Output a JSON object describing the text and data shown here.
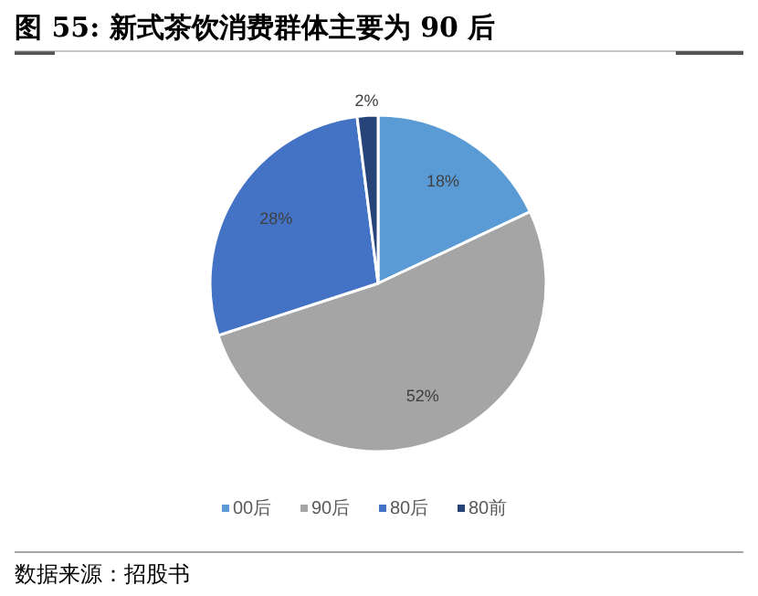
{
  "chart_data": {
    "type": "pie",
    "title": "图 55:  新式茶饮消费群体主要为 90 后",
    "categories": [
      "00后",
      "90后",
      "80后",
      "80前"
    ],
    "values": [
      18,
      52,
      28,
      2
    ],
    "colors": [
      "#5b9bd5",
      "#a5a5a5",
      "#4472c4",
      "#264478"
    ],
    "value_labels": [
      "18%",
      "52%",
      "28%",
      "2%"
    ],
    "legend": "bottom",
    "annotations": [
      "数据来源：招股书"
    ]
  }
}
